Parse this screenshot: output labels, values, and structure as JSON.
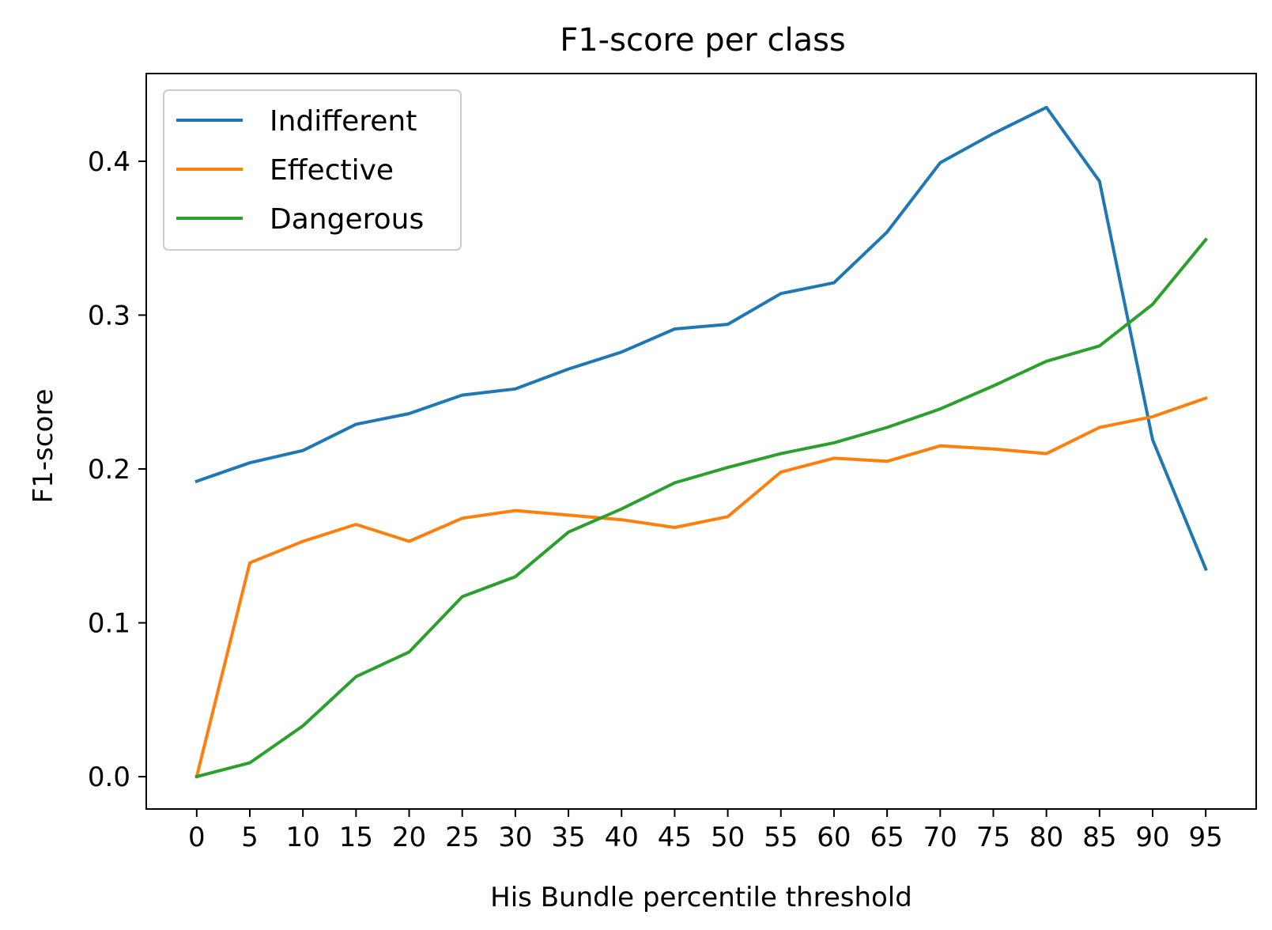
{
  "chart_data": {
    "type": "line",
    "title": "F1-score per class",
    "xlabel": "His Bundle percentile threshold",
    "ylabel": "F1-score",
    "x": [
      0,
      5,
      10,
      15,
      20,
      25,
      30,
      35,
      40,
      45,
      50,
      55,
      60,
      65,
      70,
      75,
      80,
      85,
      90,
      95
    ],
    "xticks": [
      "0",
      "5",
      "10",
      "15",
      "20",
      "25",
      "30",
      "35",
      "40",
      "45",
      "50",
      "55",
      "60",
      "65",
      "70",
      "75",
      "80",
      "85",
      "90",
      "95"
    ],
    "yticks": [
      0.0,
      0.1,
      0.2,
      0.3,
      0.4
    ],
    "ytick_labels": [
      "0.0",
      "0.1",
      "0.2",
      "0.3",
      "0.4"
    ],
    "xlim": [
      -4.75,
      99.75
    ],
    "ylim": [
      -0.021,
      0.457
    ],
    "grid": false,
    "legend_position": "upper-left",
    "series": [
      {
        "name": "Indifferent",
        "color": "#1f77b4",
        "values": [
          0.192,
          0.204,
          0.212,
          0.229,
          0.236,
          0.248,
          0.252,
          0.265,
          0.276,
          0.291,
          0.294,
          0.314,
          0.321,
          0.354,
          0.399,
          0.418,
          0.435,
          0.387,
          0.219,
          0.135
        ]
      },
      {
        "name": "Effective",
        "color": "#ff7f0e",
        "values": [
          0.0,
          0.139,
          0.153,
          0.164,
          0.153,
          0.168,
          0.173,
          0.17,
          0.167,
          0.162,
          0.169,
          0.198,
          0.207,
          0.205,
          0.215,
          0.213,
          0.21,
          0.227,
          0.234,
          0.246
        ]
      },
      {
        "name": "Dangerous",
        "color": "#2ca02c",
        "values": [
          0.0,
          0.009,
          0.033,
          0.065,
          0.081,
          0.117,
          0.13,
          0.159,
          0.174,
          0.191,
          0.201,
          0.21,
          0.217,
          0.227,
          0.239,
          0.254,
          0.27,
          0.28,
          0.307,
          0.349
        ]
      }
    ]
  }
}
